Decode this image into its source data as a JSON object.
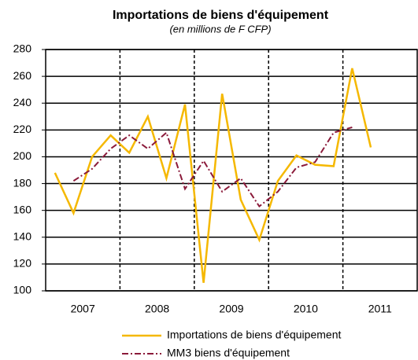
{
  "chart_data": {
    "type": "line",
    "title": "Importations de biens d'équipement",
    "subtitle": "(en millions de F CFP)",
    "categories": [
      null,
      null,
      null,
      null,
      null,
      null,
      null,
      null,
      null,
      null,
      null,
      null,
      null,
      null,
      null,
      null,
      null,
      null
    ],
    "category_groups": [
      "2007",
      "2008",
      "2009",
      "2010",
      "2011"
    ],
    "series": [
      {
        "name": "Importations de biens d'équipement",
        "color": "#f5b800",
        "style": "solid",
        "values": [
          188,
          158,
          200,
          216,
          203,
          230,
          184,
          239,
          106,
          247,
          168,
          138,
          182,
          201,
          194,
          193,
          266,
          207
        ]
      },
      {
        "name": "MM3 biens d'équipement",
        "color": "#8b1a3a",
        "style": "dashdot",
        "values": [
          null,
          182,
          191,
          206,
          216,
          206,
          218,
          176,
          197,
          174,
          184,
          163,
          174,
          192,
          196,
          218,
          222,
          null
        ]
      }
    ],
    "ylim": [
      100,
      280
    ],
    "yticks": [
      100,
      120,
      140,
      160,
      180,
      200,
      220,
      240,
      260,
      280
    ],
    "grid": true
  }
}
